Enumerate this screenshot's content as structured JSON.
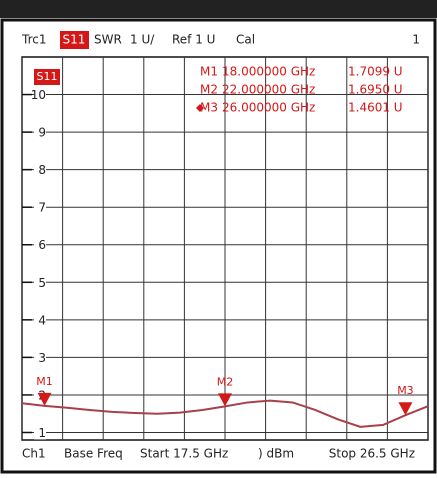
{
  "chart_data": {
    "type": "line",
    "header": {
      "trace": "Trc1",
      "param": "S11",
      "format": "SWR",
      "scale": "1 U/",
      "ref": "Ref 1 U",
      "cal": "Cal",
      "channel": "1"
    },
    "trace_label": "S11",
    "footer": {
      "channel": "Ch1",
      "base": "Base Freq",
      "start": "Start  17.5 GHz",
      "power": ") dBm",
      "stop": "Stop  26.5 GHz"
    },
    "x": [
      17.5,
      18,
      18.5,
      19,
      19.5,
      20,
      20.5,
      21,
      21.5,
      22,
      22.5,
      23,
      23.5,
      24,
      24.5,
      25,
      25.5,
      26,
      26.5
    ],
    "series": [
      {
        "name": "S11",
        "color": "#a8404c",
        "values": [
          1.78,
          1.71,
          1.66,
          1.6,
          1.55,
          1.52,
          1.5,
          1.53,
          1.6,
          1.695,
          1.8,
          1.85,
          1.8,
          1.6,
          1.35,
          1.15,
          1.2,
          1.46,
          1.7
        ]
      }
    ],
    "markers": [
      {
        "name": "M1",
        "x": 18,
        "y": 1.7099,
        "freq_label": "18.000000 GHz",
        "value_label": "1.7099 U"
      },
      {
        "name": "M2",
        "x": 22,
        "y": 1.695,
        "freq_label": "22.000000 GHz",
        "value_label": "1.6950 U"
      },
      {
        "name": "M3",
        "x": 26,
        "y": 1.4601,
        "freq_label": "26.000000 GHz",
        "value_label": "1.4601 U"
      }
    ],
    "active_marker": 2,
    "marker_color": "#d41818",
    "xlim": [
      17.5,
      26.5
    ],
    "xticks": [
      17.5,
      18.4,
      19.3,
      20.2,
      21.1,
      22,
      22.9,
      23.8,
      24.7,
      25.6,
      26.5
    ],
    "ylim": [
      0.8,
      11
    ],
    "yticks": [
      1,
      2,
      3,
      4,
      5,
      6,
      7,
      8,
      9,
      10
    ],
    "grid": true
  }
}
